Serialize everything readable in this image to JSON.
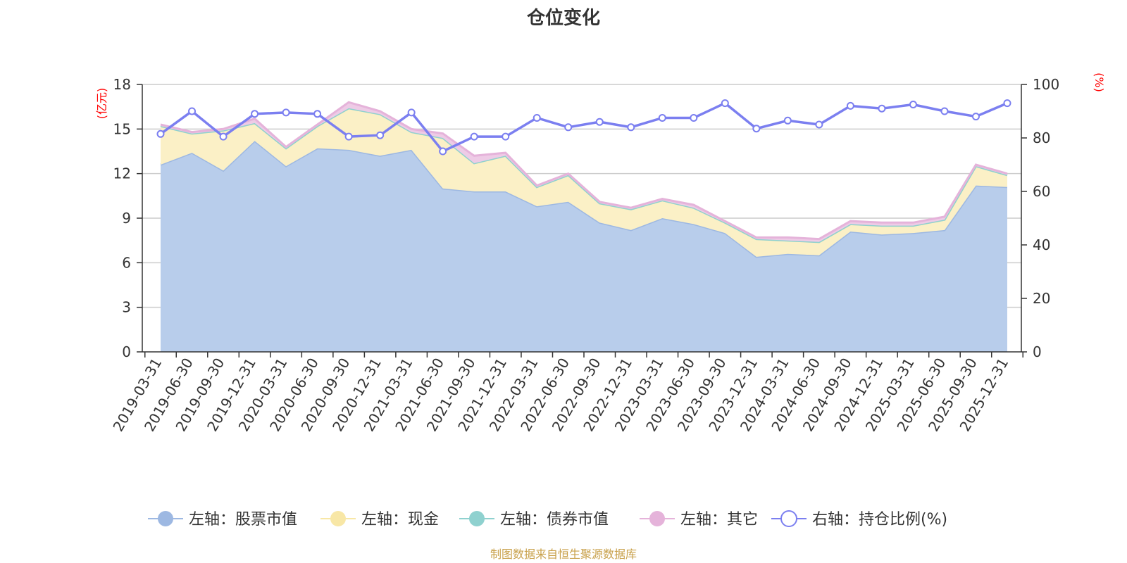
{
  "chart_data": {
    "type": "area",
    "title": "仓位变化",
    "left_unit": "(亿元)",
    "right_unit": "(%)",
    "left_ylim": [
      0,
      18
    ],
    "left_ticks": [
      0,
      3,
      6,
      9,
      12,
      15,
      18
    ],
    "right_ylim": [
      0,
      100
    ],
    "right_ticks": [
      0,
      20,
      40,
      60,
      80,
      100
    ],
    "categories": [
      "2019-03-31",
      "2019-06-30",
      "2019-09-30",
      "2019-12-31",
      "2020-03-31",
      "2020-06-30",
      "2020-09-30",
      "2020-12-31",
      "2021-03-31",
      "2021-06-30",
      "2021-09-30",
      "2021-12-31",
      "2022-03-31",
      "2022-06-30",
      "2022-09-30",
      "2022-12-31",
      "2023-03-31",
      "2023-06-30",
      "2023-09-30",
      "2023-12-31",
      "2024-03-31",
      "2024-06-30",
      "2024-09-30",
      "2024-12-31",
      "2025-03-31",
      "2025-06-30",
      "2025-09-30",
      "2025-12-31"
    ],
    "series": [
      {
        "name": "左轴：股票市值",
        "axis": "left",
        "color": "#9db8e2",
        "fill": "#b8cdeb",
        "values": [
          12.6,
          13.4,
          12.2,
          14.2,
          12.5,
          13.7,
          13.6,
          13.2,
          13.6,
          11.0,
          10.8,
          10.8,
          9.8,
          10.1,
          8.7,
          8.2,
          9.0,
          8.6,
          8.0,
          6.4,
          6.6,
          6.5,
          8.1,
          7.9,
          8.0,
          8.2,
          11.2,
          11.1
        ]
      },
      {
        "name": "左轴：现金",
        "axis": "left",
        "color": "#f8e7a6",
        "fill": "#fbf0c6",
        "values": [
          2.6,
          1.3,
          2.7,
          1.2,
          1.2,
          1.5,
          2.8,
          2.8,
          1.2,
          3.4,
          1.9,
          2.4,
          1.3,
          1.8,
          1.3,
          1.4,
          1.2,
          1.1,
          0.7,
          1.2,
          0.9,
          0.9,
          0.5,
          0.6,
          0.5,
          0.7,
          1.3,
          0.8
        ]
      },
      {
        "name": "左轴：债券市值",
        "axis": "left",
        "color": "#8fd1cf",
        "fill": "#b4e0de",
        "values": [
          0,
          0,
          0,
          0,
          0,
          0,
          0,
          0,
          0,
          0,
          0,
          0,
          0,
          0,
          0,
          0,
          0,
          0,
          0,
          0,
          0,
          0,
          0,
          0,
          0,
          0,
          0,
          0
        ]
      },
      {
        "name": "左轴：其它",
        "axis": "left",
        "color": "#e5b3da",
        "fill": "#eecbe6",
        "values": [
          0.1,
          0.1,
          0.1,
          0.3,
          0.1,
          0.1,
          0.4,
          0.2,
          0.2,
          0.3,
          0.5,
          0.2,
          0.1,
          0.1,
          0.1,
          0.1,
          0.1,
          0.2,
          0.1,
          0.1,
          0.2,
          0.2,
          0.2,
          0.2,
          0.2,
          0.2,
          0.1,
          0.1
        ]
      },
      {
        "name": "右轴：持仓比例(%)",
        "axis": "right",
        "color": "#7b7ff0",
        "values": [
          81.5,
          90.0,
          80.5,
          89.0,
          89.5,
          89.0,
          80.5,
          81.0,
          89.5,
          75.0,
          80.5,
          80.5,
          87.5,
          84.0,
          86.0,
          84.0,
          87.5,
          87.5,
          93.0,
          83.5,
          86.5,
          85.0,
          92.0,
          91.0,
          92.5,
          90.0,
          88.0,
          93.0
        ]
      }
    ],
    "source_note": "制图数据来自恒生聚源数据库"
  },
  "colors": {
    "axis": "#333333",
    "grid": "#cccccc",
    "unit": "#ff0000",
    "source": "#c8a04a"
  }
}
